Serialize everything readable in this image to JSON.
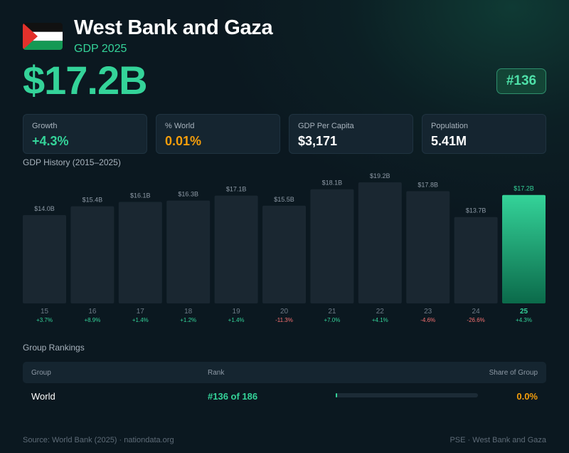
{
  "header": {
    "country": "West Bank and Gaza",
    "subtitle": "GDP 2025",
    "gdp": "$17.2B",
    "rank_badge": "#136",
    "flag_icon": "palestine-flag-icon"
  },
  "stats": [
    {
      "label": "Growth",
      "value": "+4.3%",
      "tone": "green"
    },
    {
      "label": "% World",
      "value": "0.01%",
      "tone": "orange"
    },
    {
      "label": "GDP Per Capita",
      "value": "$3,171",
      "tone": "white"
    },
    {
      "label": "Population",
      "value": "5.41M",
      "tone": "white"
    }
  ],
  "chart_title": "GDP History (2015–2025)",
  "chart_data": {
    "type": "bar",
    "categories": [
      "15",
      "16",
      "17",
      "18",
      "19",
      "20",
      "21",
      "22",
      "23",
      "24",
      "25"
    ],
    "values": [
      14.0,
      15.4,
      16.1,
      16.3,
      17.1,
      15.5,
      18.1,
      19.2,
      17.8,
      13.7,
      17.2
    ],
    "value_labels": [
      "$14.0B",
      "$15.4B",
      "$16.1B",
      "$16.3B",
      "$17.1B",
      "$15.5B",
      "$18.1B",
      "$19.2B",
      "$17.8B",
      "$13.7B",
      "$17.2B"
    ],
    "growth_labels": [
      "+3.7%",
      "+8.9%",
      "+1.4%",
      "+1.2%",
      "+1.4%",
      "-11.3%",
      "+7.0%",
      "+4.1%",
      "-4.6%",
      "-26.6%",
      "+4.3%"
    ],
    "highlight_index": 10,
    "ylim": [
      0,
      19.2
    ],
    "colors": {
      "bar": "#1a2731",
      "highlight_top": "#34d399",
      "highlight_bottom": "#0b6a4a",
      "positive": "#34d399",
      "negative": "#f87171"
    }
  },
  "rankings": {
    "title": "Group Rankings",
    "headers": {
      "group": "Group",
      "rank": "Rank",
      "share": "Share of Group"
    },
    "rows": [
      {
        "group": "World",
        "rank": "#136 of 186",
        "share": "0.0%",
        "share_fraction": 0.0001
      }
    ]
  },
  "footer": {
    "source": "Source: World Bank (2025) · nationdata.org",
    "code": "PSE · West Bank and Gaza"
  }
}
